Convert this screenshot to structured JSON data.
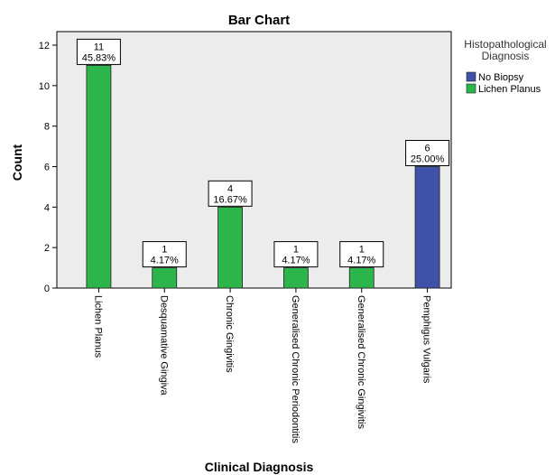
{
  "chart_data": {
    "type": "bar",
    "title": "Bar Chart",
    "xlabel": "Clinical Diagnosis",
    "ylabel": "Count",
    "ylim": [
      0,
      12
    ],
    "yticks": [
      0,
      2,
      4,
      6,
      8,
      10,
      12
    ],
    "grid": false,
    "legend_position": "right",
    "legend_title": [
      "Histopathological",
      "Diagnosis"
    ],
    "series": [
      {
        "name": "No Biopsy",
        "color": "#3f51a8"
      },
      {
        "name": "Lichen Planus",
        "color": "#2bb54a"
      }
    ],
    "categories": [
      "Lichen Planus",
      "Desquamative Gingiva",
      "Chronic Gingivitis",
      "Generalised Chronic Periodontitis",
      "Generalised Chronic Gingivitis",
      "Pemphigus Vulgaris"
    ],
    "bars": [
      {
        "category": "Lichen Planus",
        "series": "Lichen Planus",
        "value": 11,
        "percent": "45.83%"
      },
      {
        "category": "Desquamative Gingiva",
        "series": "Lichen Planus",
        "value": 1,
        "percent": "4.17%"
      },
      {
        "category": "Chronic Gingivitis",
        "series": "Lichen Planus",
        "value": 4,
        "percent": "16.67%"
      },
      {
        "category": "Generalised Chronic Periodontitis",
        "series": "Lichen Planus",
        "value": 1,
        "percent": "4.17%"
      },
      {
        "category": "Generalised Chronic Gingivitis",
        "series": "Lichen Planus",
        "value": 1,
        "percent": "4.17%"
      },
      {
        "category": "Pemphigus Vulgaris",
        "series": "No Biopsy",
        "value": 6,
        "percent": "25.00%"
      }
    ],
    "plot_background": "#ececec"
  }
}
